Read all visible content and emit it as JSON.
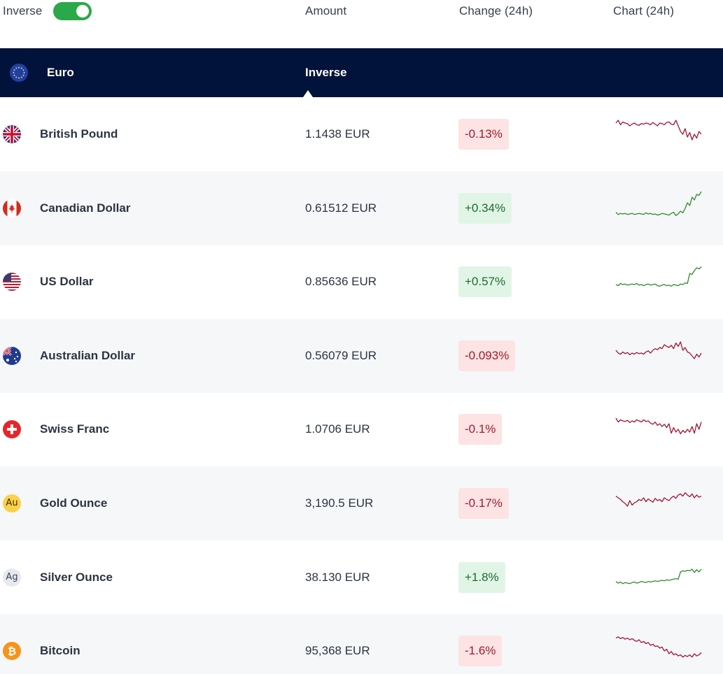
{
  "header": {
    "inverse_label": "Inverse",
    "inverse_on": true,
    "col_amount": "Amount",
    "col_change": "Change (24h)",
    "col_chart": "Chart (24h)"
  },
  "base": {
    "name": "Euro",
    "mode_label": "Inverse",
    "icon": "eu-flag-icon"
  },
  "colors": {
    "negative_line": "#a3132d",
    "positive_line": "#2d8a2a",
    "negative_badge_bg": "#fde3e3",
    "positive_badge_bg": "#e1f5e6",
    "header_bg": "#01133a",
    "toggle_on": "#2ba84a"
  },
  "rows": [
    {
      "name": "British Pound",
      "amount": "1.1438 EUR",
      "change": "-0.13%",
      "direction": "neg",
      "icon": "uk-flag-icon",
      "spark": [
        55,
        60,
        52,
        57,
        55,
        54,
        50,
        53,
        55,
        52,
        51,
        54,
        53,
        55,
        54,
        52,
        56,
        53,
        50,
        55,
        54,
        52,
        56,
        57,
        53,
        52,
        60,
        50,
        40,
        35,
        45,
        30,
        38,
        25,
        35,
        28,
        40,
        35
      ]
    },
    {
      "name": "Canadian Dollar",
      "amount": "0.61512 EUR",
      "change": "+0.34%",
      "direction": "pos",
      "icon": "canada-flag-icon",
      "spark": [
        28,
        24,
        26,
        25,
        26,
        24,
        25,
        26,
        24,
        25,
        26,
        25,
        24,
        27,
        25,
        26,
        24,
        25,
        23,
        24,
        26,
        25,
        24,
        23,
        26,
        28,
        22,
        25,
        30,
        27,
        35,
        45,
        40,
        55,
        50,
        60,
        58,
        65
      ]
    },
    {
      "name": "US Dollar",
      "amount": "0.85636 EUR",
      "change": "+0.57%",
      "direction": "pos",
      "icon": "us-flag-icon",
      "spark": [
        30,
        28,
        32,
        30,
        31,
        29,
        30,
        31,
        30,
        32,
        29,
        30,
        28,
        30,
        31,
        29,
        30,
        31,
        28,
        27,
        29,
        30,
        28,
        29,
        27,
        30,
        29,
        28,
        31,
        30,
        33,
        32,
        50,
        48,
        55,
        60,
        58,
        62
      ]
    },
    {
      "name": "Australian Dollar",
      "amount": "0.56079 EUR",
      "change": "-0.093%",
      "direction": "neg",
      "icon": "australia-flag-icon",
      "spark": [
        45,
        40,
        38,
        42,
        39,
        41,
        37,
        40,
        38,
        41,
        39,
        40,
        38,
        42,
        44,
        40,
        45,
        48,
        46,
        50,
        48,
        55,
        52,
        50,
        54,
        48,
        58,
        52,
        60,
        45,
        50,
        42,
        40,
        35,
        30,
        38,
        33,
        40
      ]
    },
    {
      "name": "Swiss Franc",
      "amount": "1.0706 EUR",
      "change": "-0.1%",
      "direction": "neg",
      "icon": "swiss-flag-icon",
      "spark": [
        55,
        48,
        52,
        50,
        49,
        51,
        47,
        50,
        48,
        52,
        50,
        48,
        52,
        49,
        50,
        46,
        44,
        48,
        42,
        45,
        40,
        44,
        38,
        45,
        28,
        38,
        30,
        35,
        27,
        33,
        29,
        35,
        30,
        40,
        28,
        45,
        35,
        48
      ]
    },
    {
      "name": "Gold Ounce",
      "amount": "3,190.5 EUR",
      "change": "-0.17%",
      "direction": "neg",
      "icon": "gold-ounce-icon",
      "spark": [
        48,
        45,
        42,
        38,
        35,
        30,
        40,
        32,
        36,
        38,
        42,
        40,
        45,
        38,
        43,
        40,
        37,
        44,
        40,
        42,
        38,
        45,
        42,
        40,
        45,
        48,
        44,
        50,
        52,
        48,
        54,
        50,
        47,
        52,
        45,
        50,
        46,
        48
      ]
    },
    {
      "name": "Silver Ounce",
      "amount": "38.130 EUR",
      "change": "+1.8%",
      "direction": "pos",
      "icon": "silver-ounce-icon",
      "spark": [
        28,
        25,
        27,
        24,
        26,
        25,
        24,
        26,
        27,
        25,
        26,
        28,
        27,
        26,
        28,
        27,
        28,
        29,
        28,
        29,
        30,
        29,
        31,
        30,
        31,
        32,
        33,
        32,
        45,
        47,
        46,
        48,
        47,
        50,
        44,
        49,
        45,
        50
      ]
    },
    {
      "name": "Bitcoin",
      "amount": "95,368 EUR",
      "change": "-1.6%",
      "direction": "neg",
      "icon": "bitcoin-icon",
      "spark": [
        58,
        60,
        57,
        59,
        56,
        58,
        55,
        57,
        54,
        52,
        55,
        50,
        52,
        48,
        50,
        45,
        47,
        43,
        44,
        40,
        42,
        35,
        38,
        30,
        34,
        28,
        30,
        26,
        28,
        24,
        27,
        25,
        28,
        24,
        30,
        26,
        28,
        32
      ]
    }
  ]
}
